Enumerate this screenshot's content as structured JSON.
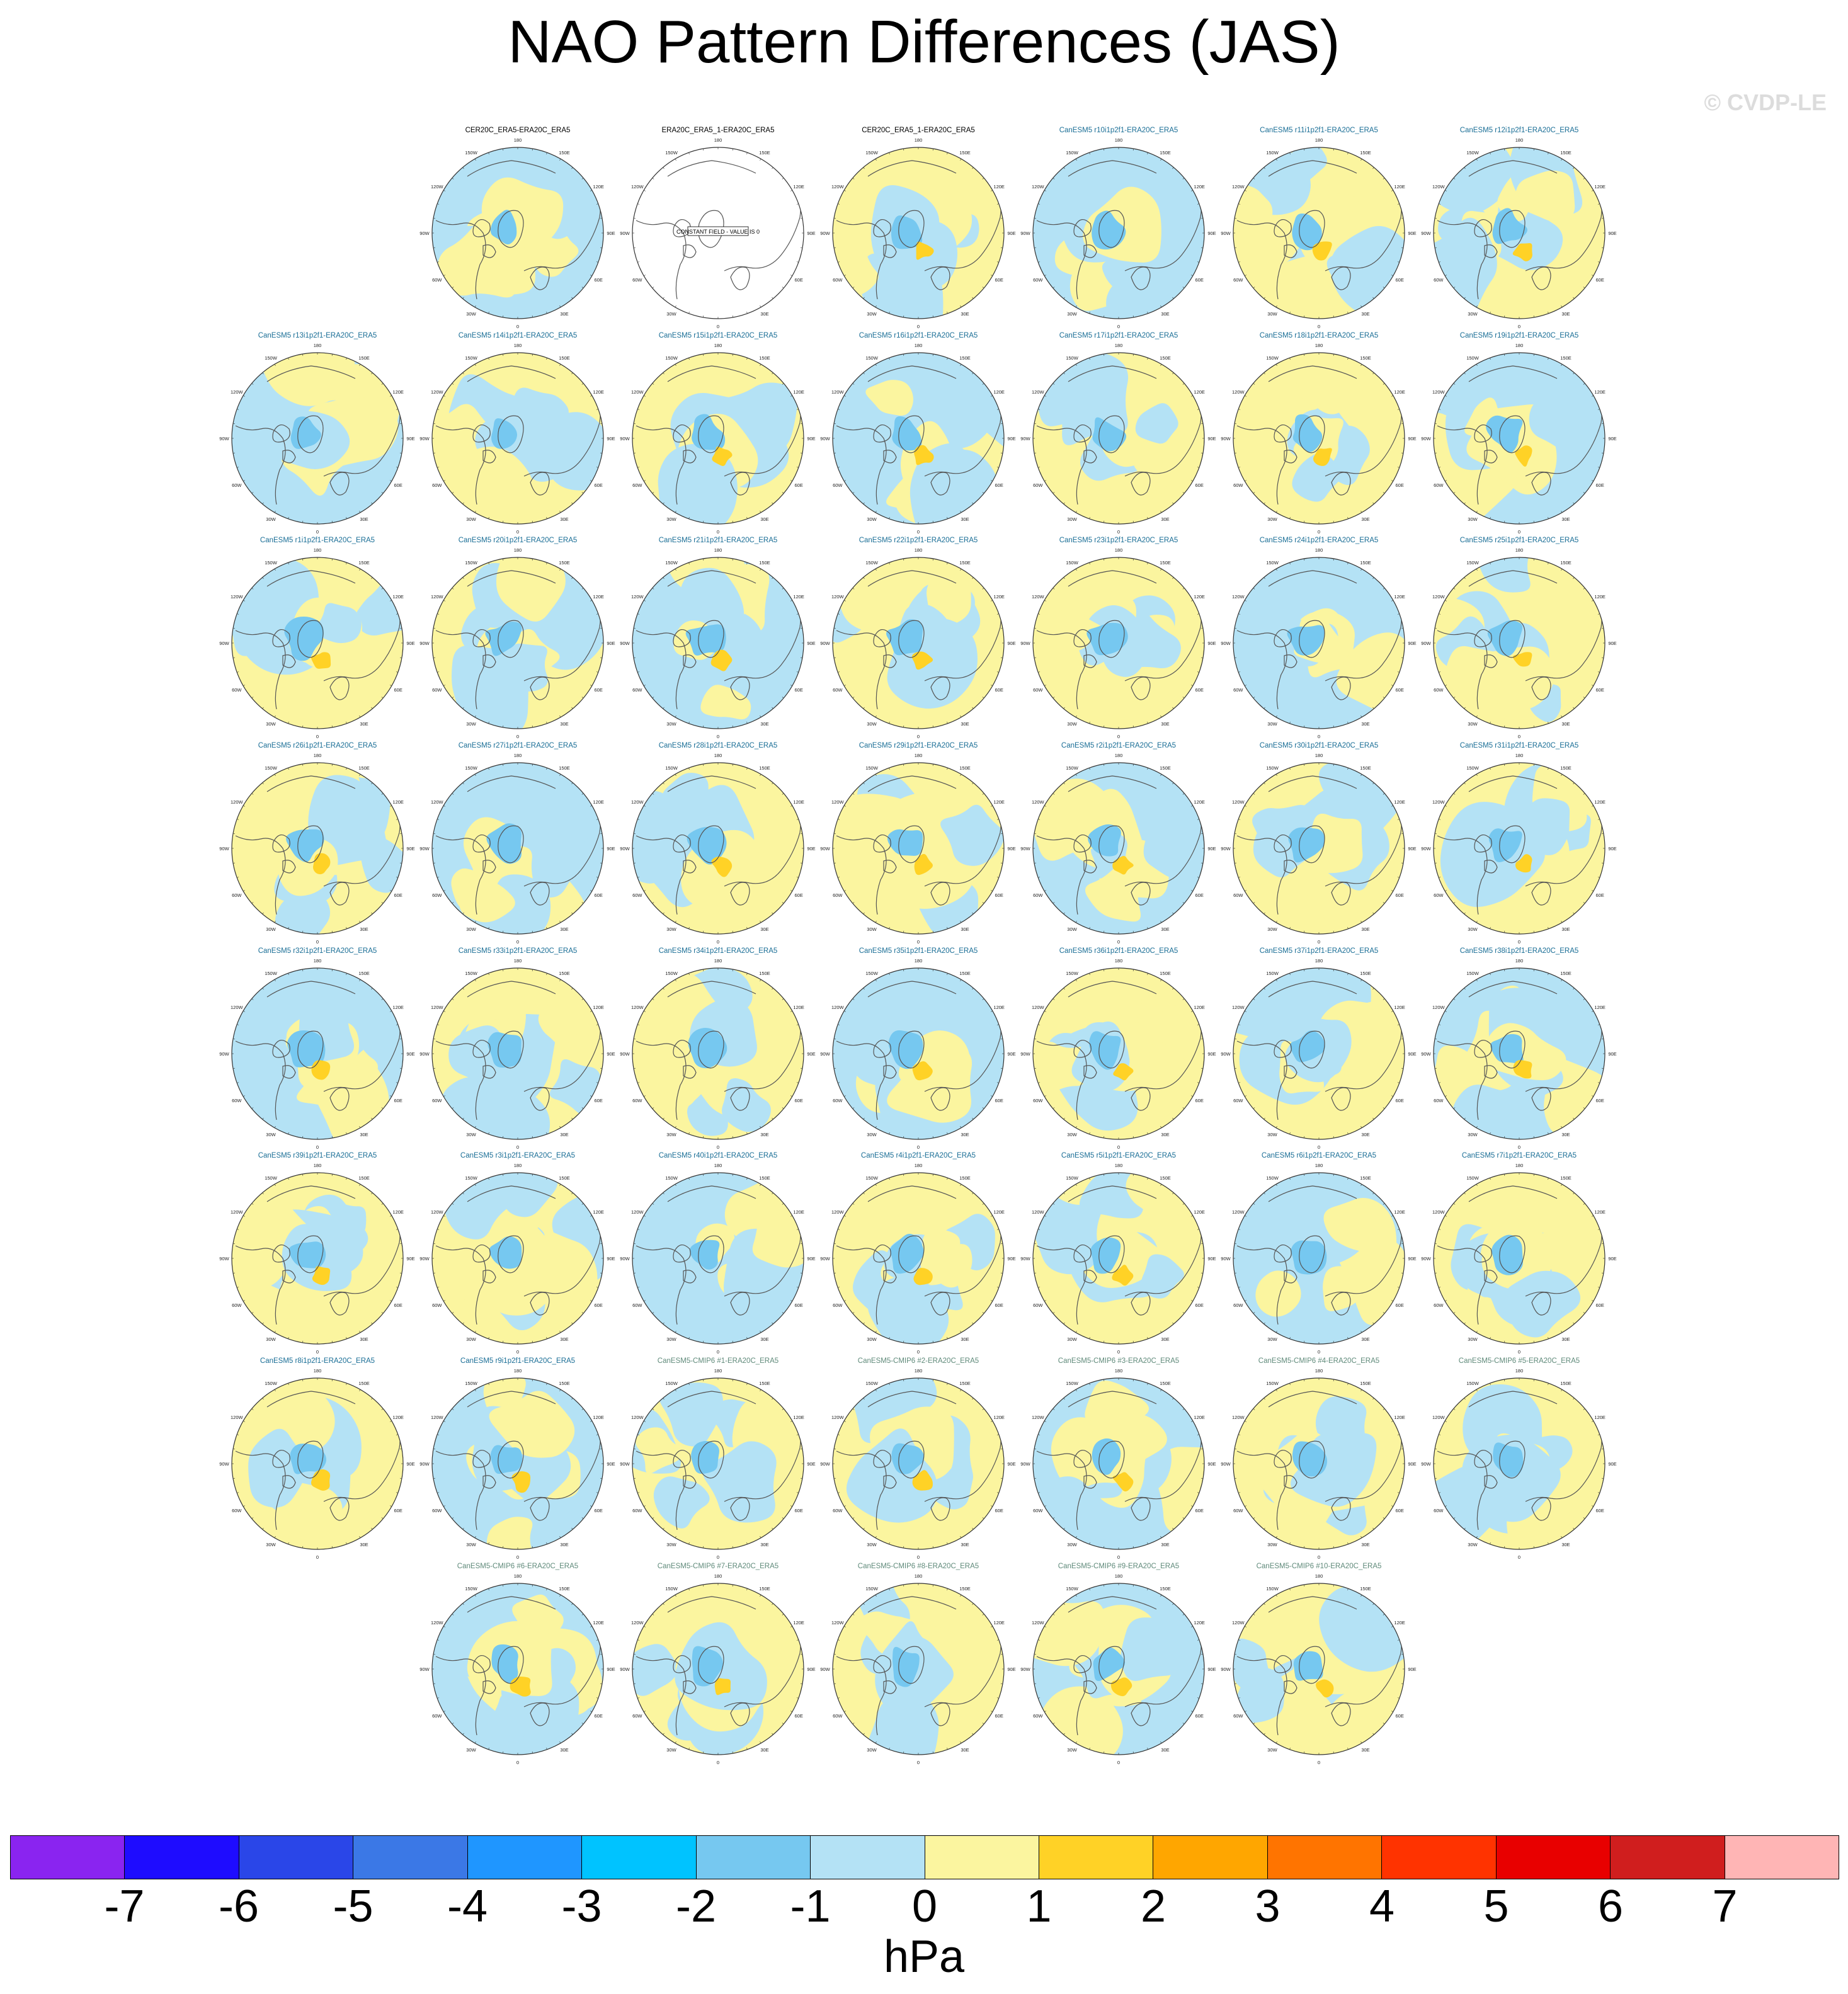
{
  "title": "NAO Pattern Differences (JAS)",
  "watermark": "© CVDP-LE",
  "chart_data": {
    "type": "heatmap",
    "title": "NAO Pattern Differences (JAS)",
    "projection": "north polar stereographic",
    "colorbar": {
      "units": "hPa",
      "ticks": [
        "-7",
        "-6",
        "-5",
        "-4",
        "-3",
        "-2",
        "-1",
        "0",
        "1",
        "2",
        "3",
        "4",
        "5",
        "6",
        "7"
      ],
      "colors": [
        "#8a24f0",
        "#1e0cff",
        "#2a46e8",
        "#3b78e6",
        "#1f96ff",
        "#00c3ff",
        "#76c8f0",
        "#b4e2f5",
        "#fbf59f",
        "#ffd226",
        "#ffa600",
        "#ff7400",
        "#ff3300",
        "#e80000",
        "#d01e1e",
        "#ffb5b5"
      ]
    },
    "map_labels": {
      "top": "180",
      "bottom": "0",
      "upper_left_outer": "150W",
      "upper_right_outer": "150E",
      "upper_left_inner": "120W",
      "upper_right_inner": "120E",
      "left": "90W",
      "right": "90E",
      "lower_left_inner": "60W",
      "lower_right_inner": "60E",
      "lower_left_outer": "30W",
      "lower_right_outer": "30E"
    },
    "constant_field_note": "CONSTANT FIELD - VALUE IS 0",
    "panels": [
      {
        "title": "CER20C_ERA5-ERA20C_ERA5",
        "color": "#000000",
        "row": 0,
        "col": 1
      },
      {
        "title": "ERA20C_ERA5_1-ERA20C_ERA5",
        "color": "#000000",
        "row": 0,
        "col": 2,
        "constant": true
      },
      {
        "title": "CER20C_ERA5_1-ERA20C_ERA5",
        "color": "#000000",
        "row": 0,
        "col": 3
      },
      {
        "title": "CanESM5 r10i1p2f1-ERA20C_ERA5",
        "color": "#1a6e96",
        "row": 0,
        "col": 4
      },
      {
        "title": "CanESM5 r11i1p2f1-ERA20C_ERA5",
        "color": "#1a6e96",
        "row": 0,
        "col": 5
      },
      {
        "title": "CanESM5 r12i1p2f1-ERA20C_ERA5",
        "color": "#1a6e96",
        "row": 0,
        "col": 6
      },
      {
        "title": "CanESM5 r13i1p2f1-ERA20C_ERA5",
        "color": "#1a6e96",
        "row": 1,
        "col": 0
      },
      {
        "title": "CanESM5 r14i1p2f1-ERA20C_ERA5",
        "color": "#1a6e96",
        "row": 1,
        "col": 1
      },
      {
        "title": "CanESM5 r15i1p2f1-ERA20C_ERA5",
        "color": "#1a6e96",
        "row": 1,
        "col": 2
      },
      {
        "title": "CanESM5 r16i1p2f1-ERA20C_ERA5",
        "color": "#1a6e96",
        "row": 1,
        "col": 3
      },
      {
        "title": "CanESM5 r17i1p2f1-ERA20C_ERA5",
        "color": "#1a6e96",
        "row": 1,
        "col": 4
      },
      {
        "title": "CanESM5 r18i1p2f1-ERA20C_ERA5",
        "color": "#1a6e96",
        "row": 1,
        "col": 5
      },
      {
        "title": "CanESM5 r19i1p2f1-ERA20C_ERA5",
        "color": "#1a6e96",
        "row": 1,
        "col": 6
      },
      {
        "title": "CanESM5 r1i1p2f1-ERA20C_ERA5",
        "color": "#1a6e96",
        "row": 2,
        "col": 0
      },
      {
        "title": "CanESM5 r20i1p2f1-ERA20C_ERA5",
        "color": "#1a6e96",
        "row": 2,
        "col": 1
      },
      {
        "title": "CanESM5 r21i1p2f1-ERA20C_ERA5",
        "color": "#1a6e96",
        "row": 2,
        "col": 2
      },
      {
        "title": "CanESM5 r22i1p2f1-ERA20C_ERA5",
        "color": "#1a6e96",
        "row": 2,
        "col": 3
      },
      {
        "title": "CanESM5 r23i1p2f1-ERA20C_ERA5",
        "color": "#1a6e96",
        "row": 2,
        "col": 4
      },
      {
        "title": "CanESM5 r24i1p2f1-ERA20C_ERA5",
        "color": "#1a6e96",
        "row": 2,
        "col": 5
      },
      {
        "title": "CanESM5 r25i1p2f1-ERA20C_ERA5",
        "color": "#1a6e96",
        "row": 2,
        "col": 6
      },
      {
        "title": "CanESM5 r26i1p2f1-ERA20C_ERA5",
        "color": "#1a6e96",
        "row": 3,
        "col": 0
      },
      {
        "title": "CanESM5 r27i1p2f1-ERA20C_ERA5",
        "color": "#1a6e96",
        "row": 3,
        "col": 1
      },
      {
        "title": "CanESM5 r28i1p2f1-ERA20C_ERA5",
        "color": "#1a6e96",
        "row": 3,
        "col": 2
      },
      {
        "title": "CanESM5 r29i1p2f1-ERA20C_ERA5",
        "color": "#1a6e96",
        "row": 3,
        "col": 3
      },
      {
        "title": "CanESM5 r2i1p2f1-ERA20C_ERA5",
        "color": "#1a6e96",
        "row": 3,
        "col": 4
      },
      {
        "title": "CanESM5 r30i1p2f1-ERA20C_ERA5",
        "color": "#1a6e96",
        "row": 3,
        "col": 5
      },
      {
        "title": "CanESM5 r31i1p2f1-ERA20C_ERA5",
        "color": "#1a6e96",
        "row": 3,
        "col": 6
      },
      {
        "title": "CanESM5 r32i1p2f1-ERA20C_ERA5",
        "color": "#1a6e96",
        "row": 4,
        "col": 0
      },
      {
        "title": "CanESM5 r33i1p2f1-ERA20C_ERA5",
        "color": "#1a6e96",
        "row": 4,
        "col": 1
      },
      {
        "title": "CanESM5 r34i1p2f1-ERA20C_ERA5",
        "color": "#1a6e96",
        "row": 4,
        "col": 2
      },
      {
        "title": "CanESM5 r35i1p2f1-ERA20C_ERA5",
        "color": "#1a6e96",
        "row": 4,
        "col": 3
      },
      {
        "title": "CanESM5 r36i1p2f1-ERA20C_ERA5",
        "color": "#1a6e96",
        "row": 4,
        "col": 4
      },
      {
        "title": "CanESM5 r37i1p2f1-ERA20C_ERA5",
        "color": "#1a6e96",
        "row": 4,
        "col": 5
      },
      {
        "title": "CanESM5 r38i1p2f1-ERA20C_ERA5",
        "color": "#1a6e96",
        "row": 4,
        "col": 6
      },
      {
        "title": "CanESM5 r39i1p2f1-ERA20C_ERA5",
        "color": "#1a6e96",
        "row": 5,
        "col": 0
      },
      {
        "title": "CanESM5 r3i1p2f1-ERA20C_ERA5",
        "color": "#1a6e96",
        "row": 5,
        "col": 1
      },
      {
        "title": "CanESM5 r40i1p2f1-ERA20C_ERA5",
        "color": "#1a6e96",
        "row": 5,
        "col": 2
      },
      {
        "title": "CanESM5 r4i1p2f1-ERA20C_ERA5",
        "color": "#1a6e96",
        "row": 5,
        "col": 3
      },
      {
        "title": "CanESM5 r5i1p2f1-ERA20C_ERA5",
        "color": "#1a6e96",
        "row": 5,
        "col": 4
      },
      {
        "title": "CanESM5 r6i1p2f1-ERA20C_ERA5",
        "color": "#1a6e96",
        "row": 5,
        "col": 5
      },
      {
        "title": "CanESM5 r7i1p2f1-ERA20C_ERA5",
        "color": "#1a6e96",
        "row": 5,
        "col": 6
      },
      {
        "title": "CanESM5 r8i1p2f1-ERA20C_ERA5",
        "color": "#1a6e96",
        "row": 6,
        "col": 0
      },
      {
        "title": "CanESM5 r9i1p2f1-ERA20C_ERA5",
        "color": "#1a6e96",
        "row": 6,
        "col": 1
      },
      {
        "title": "CanESM5-CMIP6 #1-ERA20C_ERA5",
        "color": "#5f8a7a",
        "row": 6,
        "col": 2
      },
      {
        "title": "CanESM5-CMIP6 #2-ERA20C_ERA5",
        "color": "#5f8a7a",
        "row": 6,
        "col": 3
      },
      {
        "title": "CanESM5-CMIP6 #3-ERA20C_ERA5",
        "color": "#5f8a7a",
        "row": 6,
        "col": 4
      },
      {
        "title": "CanESM5-CMIP6 #4-ERA20C_ERA5",
        "color": "#5f8a7a",
        "row": 6,
        "col": 5
      },
      {
        "title": "CanESM5-CMIP6 #5-ERA20C_ERA5",
        "color": "#5f8a7a",
        "row": 6,
        "col": 6
      },
      {
        "title": "CanESM5-CMIP6 #6-ERA20C_ERA5",
        "color": "#5f8a7a",
        "row": 7,
        "col": 1
      },
      {
        "title": "CanESM5-CMIP6 #7-ERA20C_ERA5",
        "color": "#5f8a7a",
        "row": 7,
        "col": 2
      },
      {
        "title": "CanESM5-CMIP6 #8-ERA20C_ERA5",
        "color": "#5f8a7a",
        "row": 7,
        "col": 3
      },
      {
        "title": "CanESM5-CMIP6 #9-ERA20C_ERA5",
        "color": "#5f8a7a",
        "row": 7,
        "col": 4
      },
      {
        "title": "CanESM5-CMIP6 #10-ERA20C_ERA5",
        "color": "#5f8a7a",
        "row": 7,
        "col": 5
      }
    ]
  }
}
